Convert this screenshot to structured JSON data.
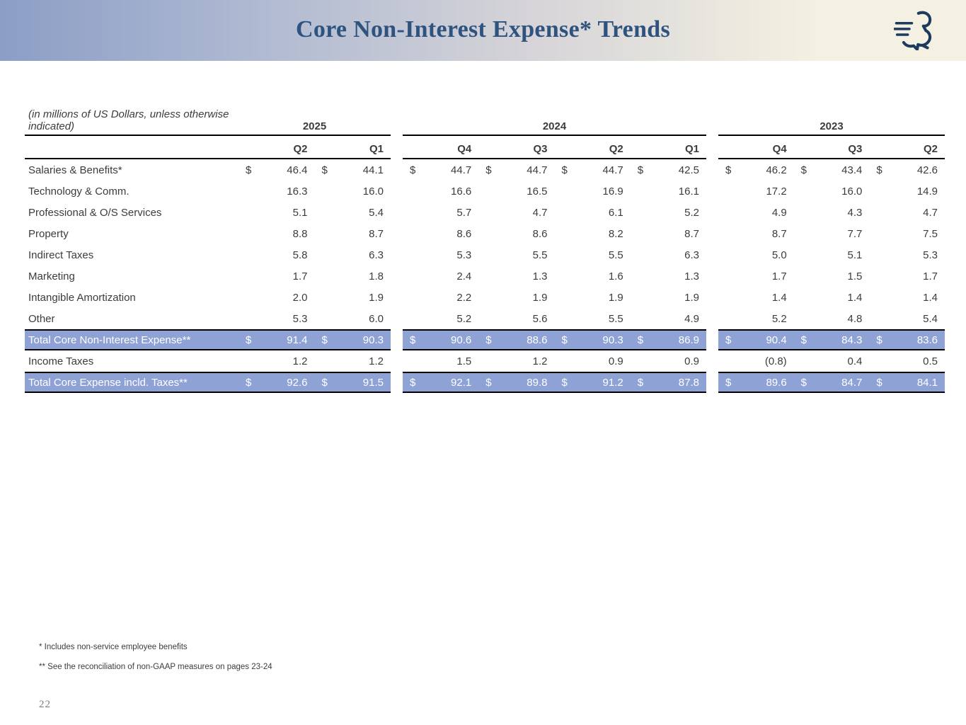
{
  "header": {
    "title": "Core Non-Interest Expense* Trends"
  },
  "colors": {
    "title": "#2E537F",
    "highlight_row": "#8FA2D6",
    "header_gradient_left": "#8C9EC6",
    "header_gradient_right": "#F4F1E2",
    "logo": "#1D3A5F"
  },
  "table": {
    "units_note": "(in millions of US Dollars, unless otherwise indicated)",
    "groups": [
      {
        "year": "2025",
        "quarters": [
          "Q2",
          "Q1"
        ]
      },
      {
        "year": "2024",
        "quarters": [
          "Q4",
          "Q3",
          "Q2",
          "Q1"
        ]
      },
      {
        "year": "2023",
        "quarters": [
          "Q4",
          "Q3",
          "Q2"
        ]
      }
    ],
    "rows": [
      {
        "label": "Salaries & Benefits*",
        "dollar": true,
        "total": false,
        "values": [
          [
            "46.4",
            "44.1"
          ],
          [
            "44.7",
            "44.7",
            "44.7",
            "42.5"
          ],
          [
            "46.2",
            "43.4",
            "42.6"
          ]
        ]
      },
      {
        "label": "Technology & Comm.",
        "dollar": false,
        "total": false,
        "values": [
          [
            "16.3",
            "16.0"
          ],
          [
            "16.6",
            "16.5",
            "16.9",
            "16.1"
          ],
          [
            "17.2",
            "16.0",
            "14.9"
          ]
        ]
      },
      {
        "label": "Professional & O/S Services",
        "dollar": false,
        "total": false,
        "values": [
          [
            "5.1",
            "5.4"
          ],
          [
            "5.7",
            "4.7",
            "6.1",
            "5.2"
          ],
          [
            "4.9",
            "4.3",
            "4.7"
          ]
        ]
      },
      {
        "label": "Property",
        "dollar": false,
        "total": false,
        "values": [
          [
            "8.8",
            "8.7"
          ],
          [
            "8.6",
            "8.6",
            "8.2",
            "8.7"
          ],
          [
            "8.7",
            "7.7",
            "7.5"
          ]
        ]
      },
      {
        "label": "Indirect Taxes",
        "dollar": false,
        "total": false,
        "values": [
          [
            "5.8",
            "6.3"
          ],
          [
            "5.3",
            "5.5",
            "5.5",
            "6.3"
          ],
          [
            "5.0",
            "5.1",
            "5.3"
          ]
        ]
      },
      {
        "label": "Marketing",
        "dollar": false,
        "total": false,
        "values": [
          [
            "1.7",
            "1.8"
          ],
          [
            "2.4",
            "1.3",
            "1.6",
            "1.3"
          ],
          [
            "1.7",
            "1.5",
            "1.7"
          ]
        ]
      },
      {
        "label": "Intangible Amortization",
        "dollar": false,
        "total": false,
        "values": [
          [
            "2.0",
            "1.9"
          ],
          [
            "2.2",
            "1.9",
            "1.9",
            "1.9"
          ],
          [
            "1.4",
            "1.4",
            "1.4"
          ]
        ]
      },
      {
        "label": "Other",
        "dollar": false,
        "total": false,
        "values": [
          [
            "5.3",
            "6.0"
          ],
          [
            "5.2",
            "5.6",
            "5.5",
            "4.9"
          ],
          [
            "5.2",
            "4.8",
            "5.4"
          ]
        ]
      },
      {
        "label": "Total Core Non-Interest Expense**",
        "dollar": true,
        "total": true,
        "values": [
          [
            "91.4",
            "90.3"
          ],
          [
            "90.6",
            "88.6",
            "90.3",
            "86.9"
          ],
          [
            "90.4",
            "84.3",
            "83.6"
          ]
        ]
      },
      {
        "label": "Income Taxes",
        "dollar": false,
        "total": false,
        "values": [
          [
            "1.2",
            "1.2"
          ],
          [
            "1.5",
            "1.2",
            "0.9",
            "0.9"
          ],
          [
            "(0.8)",
            "0.4",
            "0.5"
          ]
        ]
      },
      {
        "label": "Total Core Expense incld. Taxes**",
        "dollar": true,
        "total": true,
        "values": [
          [
            "92.6",
            "91.5"
          ],
          [
            "92.1",
            "89.8",
            "91.2",
            "87.8"
          ],
          [
            "89.6",
            "84.7",
            "84.1"
          ]
        ]
      }
    ]
  },
  "footnotes": [
    "* Includes non-service employee benefits",
    "** See the reconciliation of non-GAAP measures on pages 23-24"
  ],
  "page_number": "22"
}
